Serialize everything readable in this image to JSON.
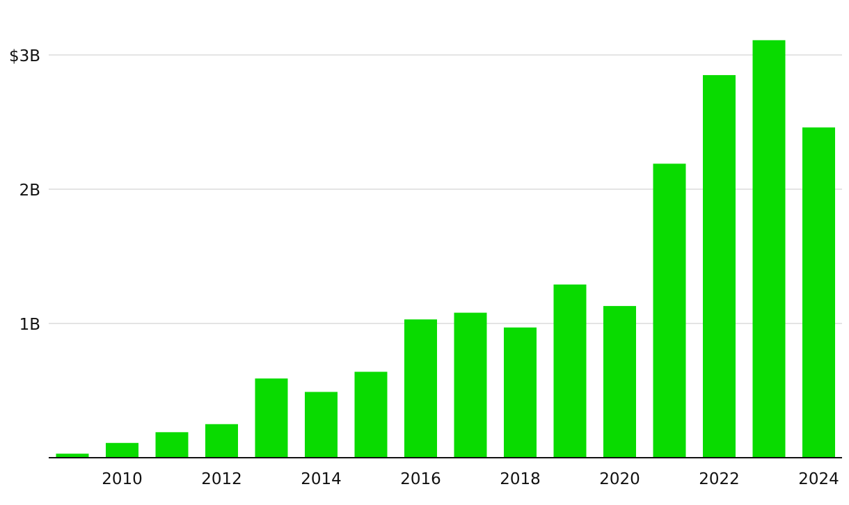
{
  "chart_data": {
    "type": "bar",
    "title": "",
    "xlabel": "",
    "ylabel": "",
    "categories": [
      "2009",
      "2010",
      "2011",
      "2012",
      "2013",
      "2014",
      "2015",
      "2016",
      "2017",
      "2018",
      "2019",
      "2020",
      "2021",
      "2022",
      "2023",
      "2024"
    ],
    "values": [
      0.03,
      0.11,
      0.19,
      0.25,
      0.59,
      0.49,
      0.64,
      1.03,
      1.08,
      0.97,
      1.29,
      1.13,
      2.19,
      2.85,
      3.11,
      2.46
    ],
    "ylim": [
      0,
      3.2
    ],
    "y_ticks": [
      {
        "value": 1,
        "label": "1B"
      },
      {
        "value": 2,
        "label": "2B"
      },
      {
        "value": 3,
        "label": "$3B"
      }
    ],
    "x_tick_labels": [
      "2010",
      "2012",
      "2014",
      "2016",
      "2018",
      "2020",
      "2022",
      "2024"
    ],
    "bar_color": "#09db00",
    "grid": true,
    "legend": "none"
  }
}
